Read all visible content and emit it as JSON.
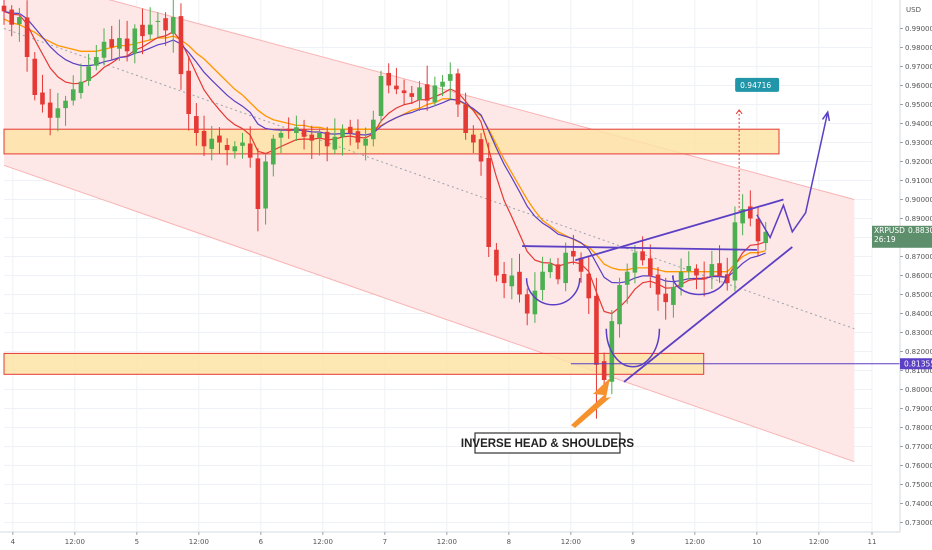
{
  "chart_data": {
    "type": "candlestick",
    "symbol": "XRPUSD",
    "currency_label": "USD",
    "last_price": "0.88301",
    "countdown": "26:19",
    "target_label": "0.94716",
    "support_label": "0.81355",
    "annotation": "INVERSE HEAD & SHOULDERS",
    "ylim": [
      0.725,
      1.005
    ],
    "xlim": [
      0,
      98
    ],
    "y_ticks": [
      "0.73000",
      "0.74000",
      "0.75000",
      "0.76000",
      "0.77000",
      "0.78000",
      "0.79000",
      "0.80000",
      "0.81000",
      "0.82000",
      "0.83000",
      "0.84000",
      "0.85000",
      "0.86000",
      "0.87000",
      "0.88000",
      "0.89000",
      "0.90000",
      "0.91000",
      "0.92000",
      "0.93000",
      "0.94000",
      "0.95000",
      "0.96000",
      "0.97000",
      "0.98000",
      "0.99000"
    ],
    "x_ticks": [
      {
        "t": 1,
        "label": "4"
      },
      {
        "t": 8,
        "label": "12:00"
      },
      {
        "t": 15,
        "label": "5"
      },
      {
        "t": 22,
        "label": "12:00"
      },
      {
        "t": 29,
        "label": "6"
      },
      {
        "t": 36,
        "label": "12:00"
      },
      {
        "t": 43,
        "label": "7"
      },
      {
        "t": 50,
        "label": "12:00"
      },
      {
        "t": 57,
        "label": "8"
      },
      {
        "t": 64,
        "label": "12:00"
      },
      {
        "t": 71,
        "label": "9"
      },
      {
        "t": 78,
        "label": "12:00"
      },
      {
        "t": 85,
        "label": "10"
      },
      {
        "t": 92,
        "label": "12:00"
      },
      {
        "t": 98,
        "label": "11"
      }
    ],
    "colors": {
      "up": "#4caf50",
      "down": "#e53935",
      "orange": "#ff9800",
      "red": "#e53935",
      "purple": "#5b3fc4",
      "zone_fill": "#fde3a6",
      "zone_stroke": "#e53935",
      "channel": "#f9b3b3",
      "last": "#5e8f6d"
    },
    "closes": [
      0.999,
      0.992,
      0.996,
      0.975,
      0.955,
      0.95,
      0.943,
      0.948,
      0.952,
      0.958,
      0.962,
      0.97,
      0.975,
      0.983,
      0.98,
      0.985,
      0.978,
      0.99,
      0.986,
      0.992,
      0.994,
      0.989,
      0.996,
      0.966,
      0.945,
      0.935,
      0.928,
      0.932,
      0.93,
      0.926,
      0.928,
      0.93,
      0.922,
      0.895,
      0.92,
      0.932,
      0.935,
      0.936,
      0.938,
      0.933,
      0.931,
      0.935,
      0.928,
      0.933,
      0.937,
      0.935,
      0.93,
      0.932,
      0.942,
      0.965,
      0.96,
      0.958,
      0.956,
      0.954,
      0.959,
      0.952,
      0.96,
      0.962,
      0.966,
      0.95,
      0.935,
      0.93,
      0.92,
      0.875,
      0.86,
      0.856,
      0.86,
      0.85,
      0.84,
      0.852,
      0.862,
      0.866,
      0.858,
      0.872,
      0.87,
      0.862,
      0.848,
      0.813,
      0.805,
      0.836,
      0.855,
      0.862,
      0.872,
      0.868,
      0.86,
      0.85,
      0.846,
      0.854,
      0.862,
      0.865,
      0.86,
      0.858,
      0.866,
      0.86,
      0.856,
      0.888,
      0.895,
      0.89,
      0.878,
      0.883
    ],
    "candle_t_start": 0,
    "candle_t_end": 86,
    "zones": [
      {
        "y1": 0.924,
        "y2": 0.937,
        "t1": 0,
        "t2": 87.5
      },
      {
        "y1": 0.808,
        "y2": 0.819,
        "t1": 0,
        "t2": 79
      }
    ],
    "channel": {
      "upper": [
        [
          0,
          1.02
        ],
        [
          96,
          0.9
        ]
      ],
      "lower": [
        [
          0,
          0.918
        ],
        [
          96,
          0.762
        ]
      ]
    },
    "dashed_midline": [
      [
        0,
        0.99
      ],
      [
        96,
        0.832
      ]
    ],
    "support_line": 0.81355,
    "target_price": 0.94716,
    "target_t": 83,
    "neckline": [
      [
        58.5,
        0.8755
      ],
      [
        85,
        0.8735
      ]
    ],
    "rising_neckline": [
      [
        64.5,
        0.868
      ],
      [
        88,
        0.9
      ]
    ],
    "lower_trendline": [
      [
        70,
        0.804
      ],
      [
        89,
        0.875
      ]
    ],
    "forecast_path": [
      [
        85,
        0.892
      ],
      [
        86.5,
        0.88
      ],
      [
        88,
        0.897
      ],
      [
        89,
        0.883
      ],
      [
        90.5,
        0.893
      ],
      [
        93,
        0.946
      ]
    ],
    "shoulders": [
      {
        "cx": 62,
        "cy": 0.846,
        "rx": 3,
        "ry": 0.014
      },
      {
        "cx": 71,
        "cy": 0.814,
        "rx": 3,
        "ry": 0.02
      },
      {
        "cx": 78.5,
        "cy": 0.851,
        "rx": 3,
        "ry": 0.01
      }
    ],
    "ema_orange": [
      0.995,
      0.993,
      0.992,
      0.99,
      0.988,
      0.985,
      0.983,
      0.981,
      0.98,
      0.979,
      0.978,
      0.978,
      0.978,
      0.979,
      0.98,
      0.981,
      0.981,
      0.982,
      0.983,
      0.984,
      0.985,
      0.985,
      0.986,
      0.984,
      0.981,
      0.977,
      0.974,
      0.97,
      0.966,
      0.962,
      0.958,
      0.955,
      0.951,
      0.947,
      0.944,
      0.942,
      0.941,
      0.94,
      0.939,
      0.939,
      0.938,
      0.938,
      0.937,
      0.937,
      0.937,
      0.937,
      0.937,
      0.937,
      0.937,
      0.939,
      0.941,
      0.943,
      0.945,
      0.947,
      0.948,
      0.95,
      0.951,
      0.953,
      0.953,
      0.952,
      0.95,
      0.947,
      0.944,
      0.937,
      0.929,
      0.921,
      0.914,
      0.907,
      0.9,
      0.894,
      0.889,
      0.886,
      0.883,
      0.881,
      0.879,
      0.877,
      0.875,
      0.871,
      0.866,
      0.864,
      0.863,
      0.863,
      0.864,
      0.864,
      0.864,
      0.863,
      0.862,
      0.862,
      0.862,
      0.862,
      0.862,
      0.862,
      0.862,
      0.862,
      0.862,
      0.866,
      0.87,
      0.872,
      0.872,
      0.873
    ]
  }
}
